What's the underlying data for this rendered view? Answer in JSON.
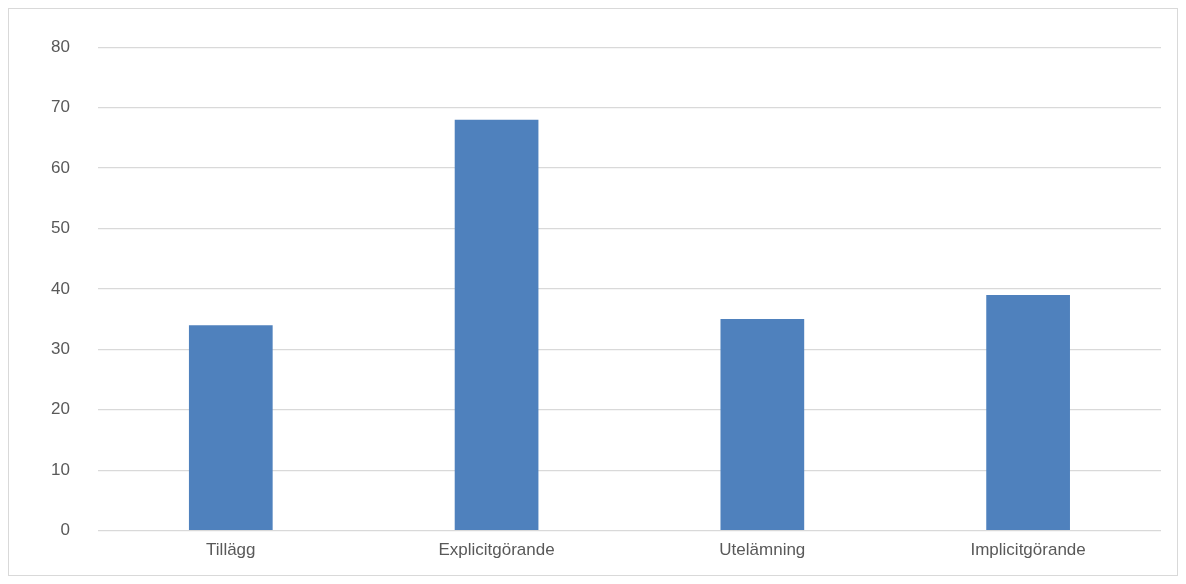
{
  "chart_data": {
    "type": "bar",
    "categories": [
      "Tillägg",
      "Explicitgörande",
      "Utelämning",
      "Implicitgörande"
    ],
    "values": [
      34,
      68,
      35,
      39
    ],
    "color": "#4f81bd",
    "ylim": [
      0,
      80
    ],
    "yticks": [
      0,
      10,
      20,
      30,
      40,
      50,
      60,
      70,
      80
    ],
    "grid": "y",
    "legend": false
  }
}
